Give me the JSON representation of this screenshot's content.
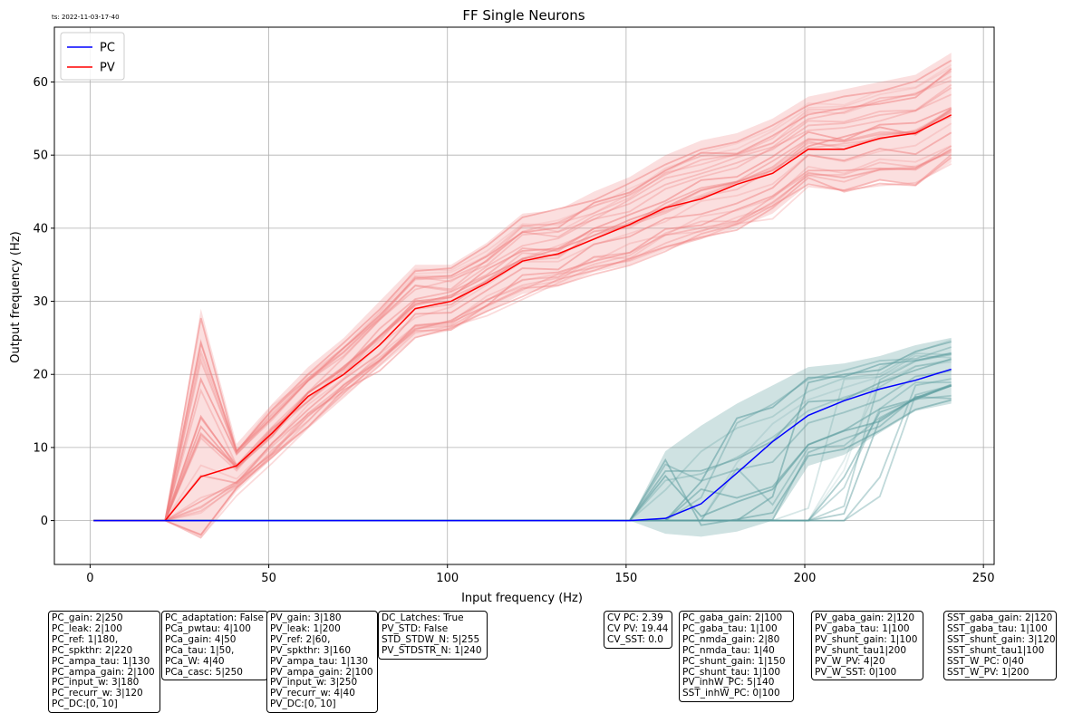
{
  "timestamp": "ts: 2022-11-03-17-40",
  "chart_data": {
    "type": "line",
    "title": "FF Single Neurons",
    "xlabel": "Input frequency (Hz)",
    "ylabel": "Output frequency (Hz)",
    "xlim": [
      -10,
      253
    ],
    "ylim": [
      -6,
      67.5
    ],
    "xticks": [
      0,
      50,
      100,
      150,
      200,
      250
    ],
    "yticks": [
      0,
      10,
      20,
      30,
      40,
      50,
      60
    ],
    "grid": true,
    "legend": {
      "placement": "top-left",
      "entries": [
        "PC",
        "PV"
      ]
    },
    "x": [
      1,
      11,
      21,
      31,
      41,
      51,
      61,
      71,
      81,
      91,
      101,
      111,
      121,
      131,
      141,
      151,
      161,
      171,
      181,
      191,
      201,
      211,
      221,
      231,
      241
    ],
    "series": [
      {
        "name": "PV",
        "color": "#ff0000",
        "values": [
          0,
          0,
          0,
          6,
          7.5,
          12,
          17,
          20,
          24,
          29,
          30,
          32.5,
          35.5,
          36.5,
          38.5,
          40.5,
          42.8,
          44,
          46,
          47.5,
          50.8,
          50.8,
          52.3,
          53,
          55.5
        ],
        "band_upper": [
          0,
          0,
          0,
          29,
          10.5,
          16,
          21,
          25,
          30,
          35,
          35,
          38,
          42,
          42.5,
          45,
          47,
          50,
          52,
          53,
          55,
          58,
          59,
          60,
          61,
          64
        ],
        "band_lower": [
          0,
          0,
          0,
          -2.5,
          4,
          8.5,
          13,
          17,
          21,
          25,
          26,
          28.5,
          31,
          32,
          34,
          35,
          37,
          38.5,
          40,
          42,
          46,
          45,
          46.5,
          46,
          49
        ],
        "trace_color": "#f08080"
      },
      {
        "name": "PC",
        "color": "#0000ff",
        "values": [
          0,
          0,
          0,
          0,
          0,
          0,
          0,
          0,
          0,
          0,
          0,
          0,
          0,
          0,
          0,
          0,
          0.3,
          2.3,
          6.5,
          10.8,
          14.4,
          16.4,
          18,
          19.2,
          20.7
        ],
        "band_upper": [
          0,
          0,
          0,
          0,
          0,
          0,
          0,
          0,
          0,
          0,
          0,
          0,
          0,
          0,
          0,
          0,
          9.5,
          13,
          16,
          18.5,
          21,
          21.5,
          22.5,
          24,
          25
        ],
        "band_lower": [
          0,
          0,
          0,
          0,
          0,
          0,
          0,
          0,
          0,
          0,
          0,
          0,
          0,
          0,
          0,
          0,
          -1.8,
          -2.2,
          -1.5,
          0,
          7.5,
          9,
          12,
          15,
          16
        ],
        "trace_color": "#5f9ea0"
      }
    ]
  },
  "annotations": [
    [
      "PC_gain: 2|250",
      "PC_leak: 2|100",
      "PC_ref: 1|180,",
      "PC_spkthr: 2|220",
      "PC_ampa_tau: 1|130",
      "PC_ampa_gain: 2|100",
      "PC_input_w: 3|180",
      "PC_recurr_w: 3|120",
      "PC_DC:[0, 10]"
    ],
    [
      "PC_adaptation: False",
      "PCa_pwtau: 4|100",
      "PCa_gain: 4|50",
      "PCa_tau: 1|50,",
      "PCa_W: 4|40",
      "PCa_casc: 5|250"
    ],
    [
      "PV_gain: 3|180",
      "PV_leak: 1|200",
      "PV_ref: 2|60,",
      "PV_spkthr: 3|160",
      "PV_ampa_tau: 1|130",
      "PV_ampa_gain: 2|100",
      "PV_input_w: 3|250",
      "PV_recurr_w: 4|40",
      "PV_DC:[0, 10]"
    ],
    [
      "DC_Latches: True",
      "PV_STD: False",
      "STD_STDW_N: 5|255",
      "PV_STDSTR_N: 1|240"
    ],
    [
      "CV PC: 2.39",
      "CV PV: 19.44",
      "CV_SST: 0.0"
    ],
    [
      "PC_gaba_gain: 2|100",
      "PC_gaba_tau: 1|100",
      "PC_nmda_gain: 2|80",
      "PC_nmda_tau: 1|40",
      "PC_shunt_gain: 1|150",
      "PC_shunt_tau: 1|100",
      "PV_inhW_PC: 5|140",
      "SST_inhW_PC: 0|100"
    ],
    [
      "PV_gaba_gain: 2|120",
      "PV_gaba_tau: 1|100",
      "PV_shunt_gain: 1|100",
      "PV_shunt_tau1|200",
      "PV_W_PV: 4|20",
      "PV_W_SST: 0|100"
    ],
    [
      "SST_gaba_gain: 2|120",
      "SST_gaba_tau: 1|100",
      "SST_shunt_gain: 3|120,",
      "SST_shunt_tau1|100",
      "SST_W_PC: 0|40",
      "SST_W_PV: 1|200"
    ]
  ]
}
